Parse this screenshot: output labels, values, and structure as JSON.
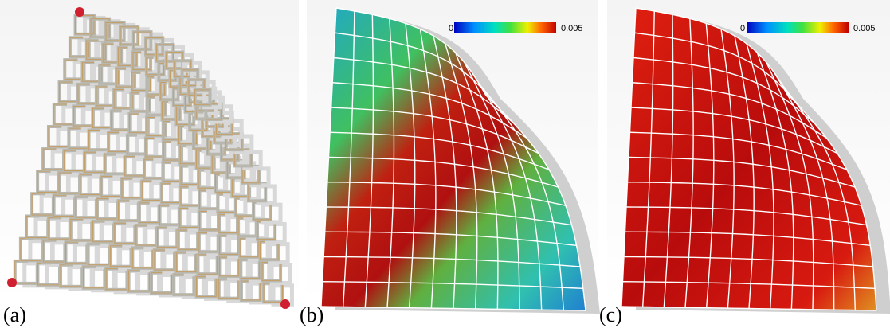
{
  "panels": [
    {
      "label": "(a)"
    },
    {
      "label": "(b)",
      "colorbar": {
        "min_label": "0",
        "max_label": "0.005"
      }
    },
    {
      "label": "(c)",
      "colorbar": {
        "min_label": "0",
        "max_label": "0.005"
      }
    }
  ]
}
